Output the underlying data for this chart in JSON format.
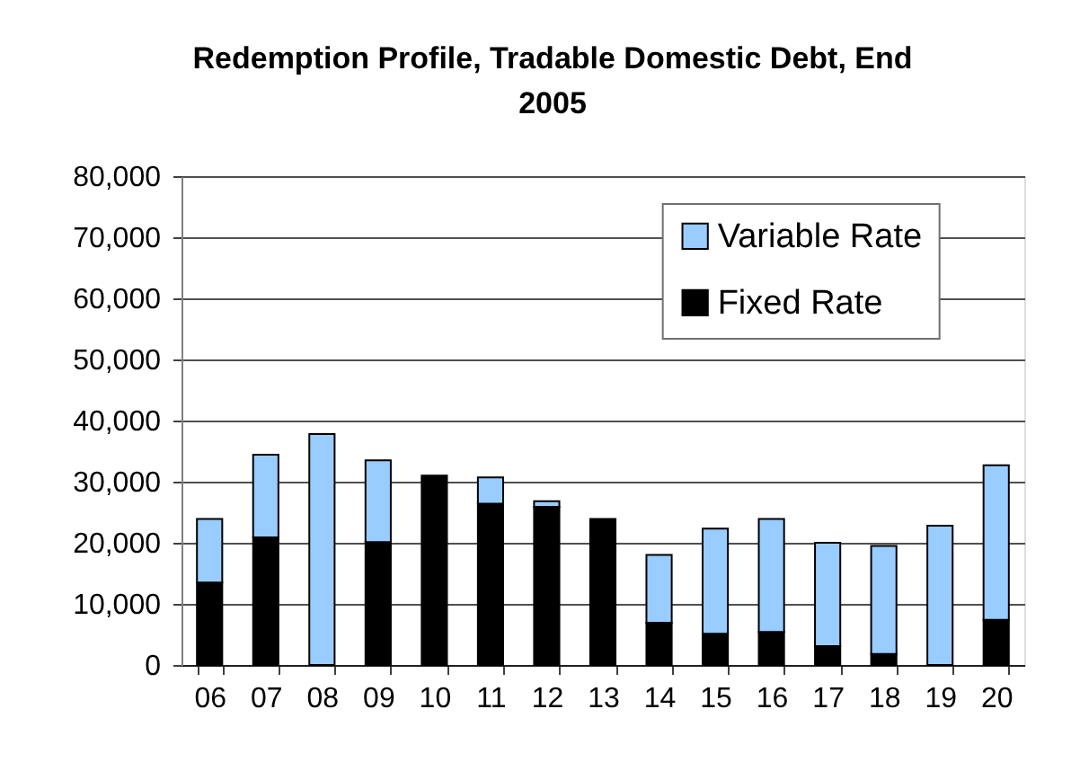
{
  "chart_data": {
    "type": "bar",
    "title": "Redemption Profile, Tradable Domestic Debt, End 2005",
    "categories": [
      "06",
      "07",
      "08",
      "09",
      "10",
      "11",
      "12",
      "13",
      "14",
      "15",
      "16",
      "17",
      "18",
      "19",
      "20"
    ],
    "series": [
      {
        "name": "Fixed Rate",
        "color": "#000000",
        "values": [
          13500,
          20900,
          null,
          20100,
          31000,
          26400,
          25900,
          23900,
          6900,
          5100,
          5400,
          3100,
          1800,
          null,
          7400
        ]
      },
      {
        "name": "Variable Rate",
        "color": "#99ccff",
        "values": [
          10400,
          13500,
          37800,
          13400,
          null,
          4300,
          900,
          null,
          11100,
          17200,
          18500,
          16900,
          17700,
          22800,
          25300
        ]
      }
    ],
    "stacked": true,
    "ylim": [
      0,
      80000
    ],
    "yticks": [
      0,
      {
        "value": 10000,
        "label": "10,000"
      },
      {
        "value": 20000,
        "label": "20,000"
      },
      {
        "value": 30000,
        "label": "30,000"
      },
      {
        "value": 40000,
        "label": "40,000"
      },
      {
        "value": 50000,
        "label": "50,000"
      },
      {
        "value": 60000,
        "label": "60,000"
      },
      {
        "value": 70000,
        "label": "70,000"
      },
      {
        "value": 80000,
        "label": "80,000"
      }
    ],
    "grid": "y",
    "legend": "top right"
  }
}
